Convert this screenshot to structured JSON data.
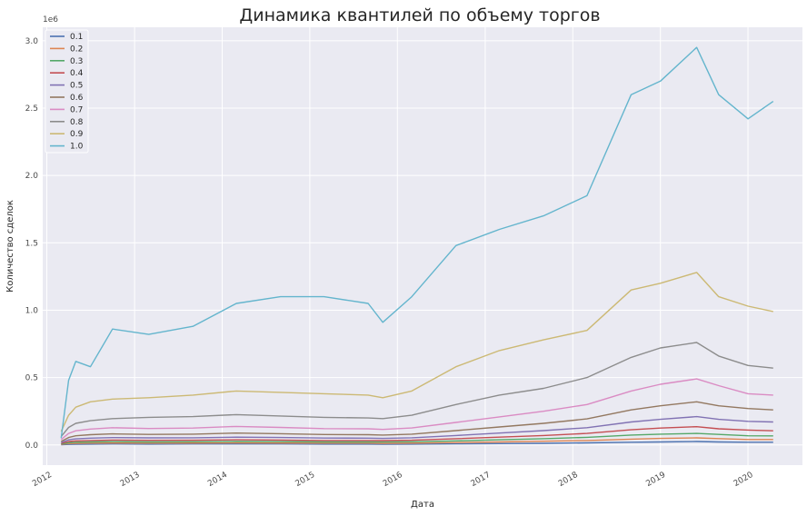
{
  "chart_data": {
    "type": "line",
    "title": "Динамика квантилей по объему торгов",
    "xlabel": "Дата",
    "ylabel": "Количество сделок",
    "y_offset_label": "1e6",
    "x_range": [
      "2011-12-15",
      "2020-08-15"
    ],
    "ylim": [
      -0.15,
      3.1
    ],
    "y_ticks": [
      "0.0",
      "0.5",
      "1.0",
      "1.5",
      "2.0",
      "2.5",
      "3.0"
    ],
    "y_tick_values": [
      0,
      0.5,
      1.0,
      1.5,
      2.0,
      2.5,
      3.0
    ],
    "x_ticks": [
      "2012",
      "2013",
      "2014",
      "2015",
      "2016",
      "2017",
      "2018",
      "2019",
      "2020"
    ],
    "x_tick_dates": [
      "2012-01-01",
      "2013-01-01",
      "2014-01-01",
      "2015-01-01",
      "2016-01-01",
      "2017-01-01",
      "2018-01-01",
      "2019-01-01",
      "2020-01-01"
    ],
    "grid": true,
    "legend_position": "top-left",
    "x": [
      "2012-03-01",
      "2012-04-01",
      "2012-05-01",
      "2012-07-01",
      "2012-10-01",
      "2013-03-01",
      "2013-09-01",
      "2014-03-01",
      "2014-09-01",
      "2015-03-01",
      "2015-09-01",
      "2015-11-01",
      "2016-03-01",
      "2016-09-01",
      "2017-03-01",
      "2017-09-01",
      "2018-03-01",
      "2018-09-01",
      "2019-01-01",
      "2019-06-01",
      "2019-09-01",
      "2020-01-01",
      "2020-04-15"
    ],
    "series": [
      {
        "name": "0.1",
        "color": "#4c72b0",
        "values": [
          0.002,
          0.004,
          0.005,
          0.006,
          0.007,
          0.006,
          0.007,
          0.007,
          0.007,
          0.006,
          0.006,
          0.005,
          0.006,
          0.008,
          0.01,
          0.012,
          0.015,
          0.02,
          0.022,
          0.025,
          0.022,
          0.02,
          0.02
        ]
      },
      {
        "name": "0.2",
        "color": "#dd8452",
        "values": [
          0.005,
          0.01,
          0.012,
          0.013,
          0.014,
          0.013,
          0.014,
          0.015,
          0.014,
          0.013,
          0.013,
          0.012,
          0.013,
          0.017,
          0.022,
          0.027,
          0.033,
          0.043,
          0.048,
          0.052,
          0.047,
          0.04,
          0.04
        ]
      },
      {
        "name": "0.3",
        "color": "#55a868",
        "values": [
          0.008,
          0.016,
          0.02,
          0.022,
          0.024,
          0.022,
          0.023,
          0.025,
          0.024,
          0.022,
          0.022,
          0.021,
          0.023,
          0.03,
          0.038,
          0.046,
          0.056,
          0.073,
          0.08,
          0.085,
          0.078,
          0.068,
          0.067
        ]
      },
      {
        "name": "0.4",
        "color": "#c44e52",
        "values": [
          0.012,
          0.025,
          0.03,
          0.033,
          0.036,
          0.034,
          0.035,
          0.038,
          0.036,
          0.033,
          0.033,
          0.032,
          0.035,
          0.046,
          0.058,
          0.07,
          0.085,
          0.112,
          0.125,
          0.135,
          0.12,
          0.11,
          0.105
        ]
      },
      {
        "name": "0.5",
        "color": "#8172b3",
        "values": [
          0.018,
          0.038,
          0.045,
          0.05,
          0.054,
          0.052,
          0.053,
          0.058,
          0.055,
          0.051,
          0.05,
          0.048,
          0.053,
          0.07,
          0.088,
          0.106,
          0.128,
          0.17,
          0.19,
          0.21,
          0.19,
          0.175,
          0.17
        ]
      },
      {
        "name": "0.6",
        "color": "#937860",
        "values": [
          0.026,
          0.055,
          0.068,
          0.076,
          0.082,
          0.078,
          0.08,
          0.088,
          0.083,
          0.077,
          0.076,
          0.073,
          0.08,
          0.106,
          0.133,
          0.16,
          0.193,
          0.26,
          0.29,
          0.32,
          0.29,
          0.27,
          0.26
        ]
      },
      {
        "name": "0.7",
        "color": "#da8bc3",
        "values": [
          0.04,
          0.085,
          0.105,
          0.118,
          0.128,
          0.122,
          0.125,
          0.137,
          0.13,
          0.121,
          0.12,
          0.115,
          0.126,
          0.167,
          0.208,
          0.25,
          0.3,
          0.4,
          0.45,
          0.49,
          0.44,
          0.38,
          0.37
        ]
      },
      {
        "name": "0.8",
        "color": "#8c8c8c",
        "values": [
          0.062,
          0.13,
          0.16,
          0.18,
          0.195,
          0.205,
          0.21,
          0.225,
          0.215,
          0.205,
          0.2,
          0.195,
          0.22,
          0.3,
          0.37,
          0.42,
          0.5,
          0.65,
          0.72,
          0.76,
          0.66,
          0.59,
          0.57
        ]
      },
      {
        "name": "0.9",
        "color": "#ccb974",
        "values": [
          0.1,
          0.22,
          0.28,
          0.32,
          0.34,
          0.35,
          0.37,
          0.4,
          0.39,
          0.38,
          0.37,
          0.35,
          0.4,
          0.58,
          0.7,
          0.78,
          0.85,
          1.15,
          1.2,
          1.28,
          1.1,
          1.03,
          0.99
        ]
      },
      {
        "name": "1.0",
        "color": "#64b5cd",
        "values": [
          0.05,
          0.48,
          0.62,
          0.58,
          0.86,
          0.82,
          0.88,
          1.05,
          1.1,
          1.1,
          1.05,
          0.91,
          1.1,
          1.48,
          1.6,
          1.7,
          1.85,
          2.6,
          2.7,
          2.95,
          2.6,
          2.42,
          2.55
        ]
      }
    ]
  }
}
